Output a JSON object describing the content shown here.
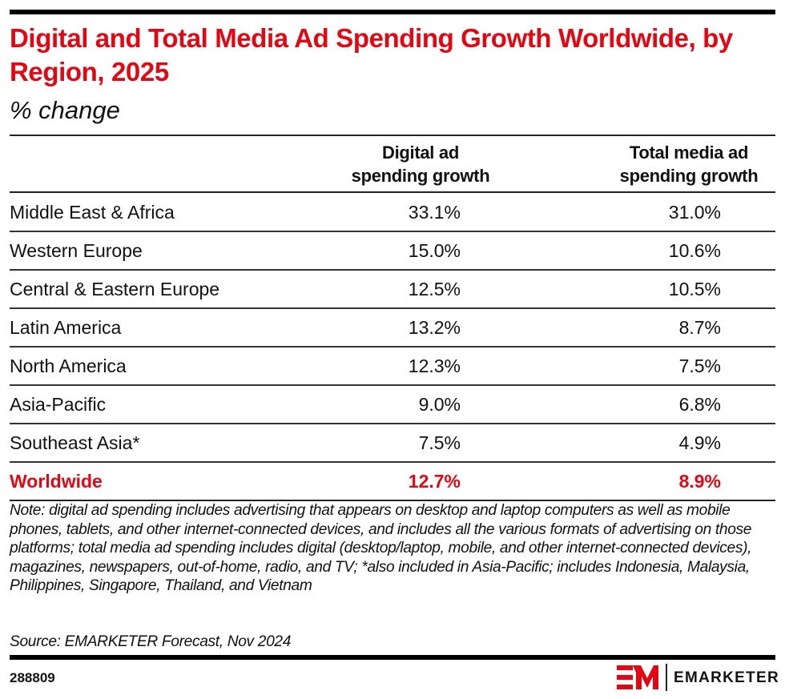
{
  "header": {
    "title": "Digital and Total Media Ad Spending Growth Worldwide, by Region, 2025",
    "subtitle": "% change"
  },
  "colors": {
    "accent": "#e30613",
    "text": "#111111",
    "rule": "#000000"
  },
  "chart_data": {
    "type": "table",
    "title": "Digital and Total Media Ad Spending Growth Worldwide, by Region, 2025",
    "subtitle": "% change",
    "columns": [
      "",
      "Digital ad spending growth",
      "Total media ad spending growth"
    ],
    "column_headers": [
      {
        "line1": "Digital ad",
        "line2": "spending growth"
      },
      {
        "line1": "Total media ad",
        "line2": "spending growth"
      }
    ],
    "rows": [
      {
        "region": "Middle East & Africa",
        "digital": "33.1%",
        "total": "31.0%",
        "highlight": false
      },
      {
        "region": "Western Europe",
        "digital": "15.0%",
        "total": "10.6%",
        "highlight": false
      },
      {
        "region": "Central & Eastern Europe",
        "digital": "12.5%",
        "total": "10.5%",
        "highlight": false
      },
      {
        "region": "Latin America",
        "digital": "13.2%",
        "total": "8.7%",
        "highlight": false
      },
      {
        "region": "North America",
        "digital": "12.3%",
        "total": "7.5%",
        "highlight": false
      },
      {
        "region": "Asia-Pacific",
        "digital": "9.0%",
        "total": "6.8%",
        "highlight": false
      },
      {
        "region": "Southeast Asia*",
        "digital": "7.5%",
        "total": "4.9%",
        "highlight": false
      },
      {
        "region": "Worldwide",
        "digital": "12.7%",
        "total": "8.9%",
        "highlight": true
      }
    ],
    "values": {
      "digital": [
        33.1,
        15.0,
        12.5,
        13.2,
        12.3,
        9.0,
        7.5,
        12.7
      ],
      "total": [
        31.0,
        10.6,
        10.5,
        8.7,
        7.5,
        6.8,
        4.9,
        8.9
      ]
    }
  },
  "footer": {
    "note": "Note: digital ad spending includes advertising that appears on desktop and laptop computers as well as mobile phones, tablets, and other internet-connected devices, and includes all the various formats of advertising on those platforms; total media ad spending includes digital (desktop/laptop, mobile, and other internet-connected devices), magazines, newspapers, out-of-home, radio, and TV; *also included in Asia-Pacific; includes Indonesia, Malaysia, Philippines, Singapore, Thailand, and Vietnam",
    "source": "Source: EMARKETER Forecast, Nov 2024",
    "chart_id": "288809",
    "brand": "EMARKETER",
    "logo_icon": "em-logo-icon"
  }
}
